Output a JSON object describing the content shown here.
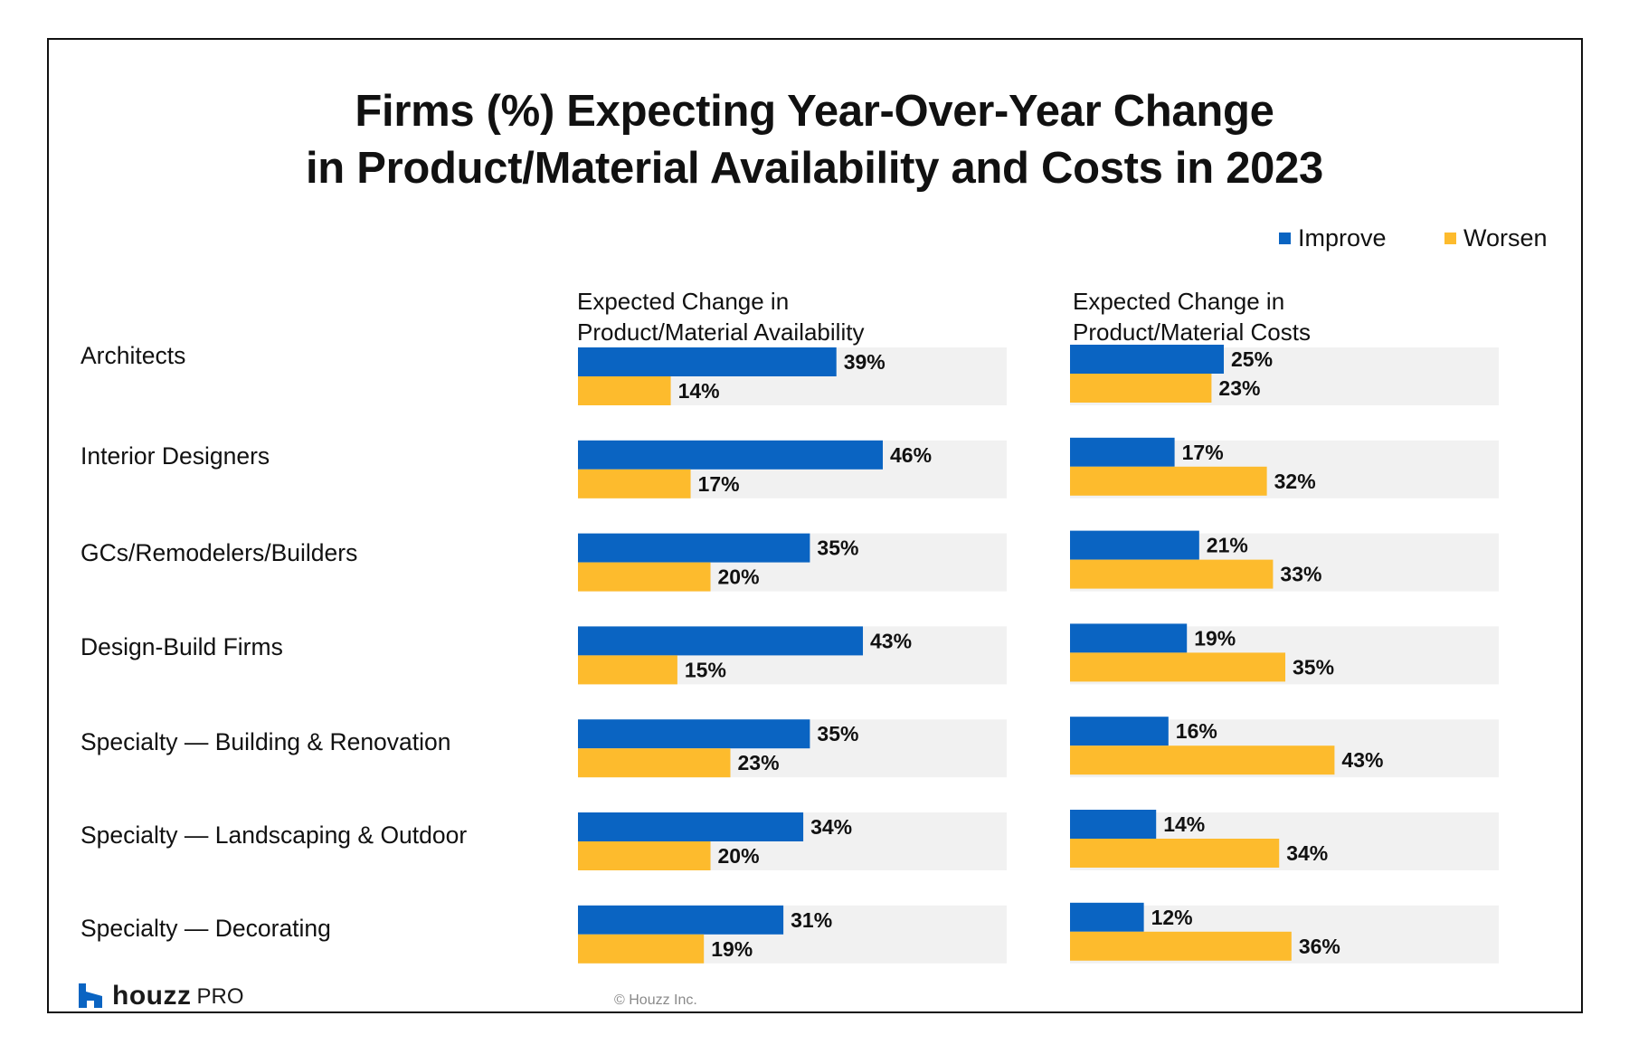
{
  "colors": {
    "improve": "#0A64C2",
    "worsen": "#FDBB2D",
    "track": "#F1F1F1",
    "text": "#111111"
  },
  "chart_data": {
    "type": "bar",
    "orientation": "horizontal",
    "title": "Firms (%) Expecting Year-Over-Year Change in Product/Material Availability and Costs in 2023",
    "title_lines": [
      "Firms (%) Expecting Year-Over-Year Change",
      "in Product/Material Availability and Costs in 2023"
    ],
    "legend": {
      "position": "top-right",
      "entries": [
        {
          "name": "Improve",
          "color": "#0A64C2"
        },
        {
          "name": "Worsen",
          "color": "#FDBB2D"
        }
      ]
    },
    "categories": [
      "Architects",
      "Interior Designers",
      "GCs/Remodelers/Builders",
      "Design-Build Firms",
      "Specialty — Building & Renovation",
      "Specialty — Landscaping & Outdoor",
      "Specialty — Decorating"
    ],
    "panels": [
      {
        "header_lines": [
          "Expected Change in",
          "Product/Material Availability"
        ],
        "xlim": [
          0,
          64.7
        ],
        "series": [
          {
            "name": "Improve",
            "values": [
              39,
              46,
              35,
              43,
              35,
              34,
              31
            ]
          },
          {
            "name": "Worsen",
            "values": [
              14,
              17,
              20,
              15,
              23,
              20,
              19
            ]
          }
        ]
      },
      {
        "header_lines": [
          "Expected Change in",
          "Product/Material Costs"
        ],
        "xlim": [
          0,
          69.7
        ],
        "series": [
          {
            "name": "Improve",
            "values": [
              25,
              17,
              21,
              19,
              16,
              14,
              12
            ]
          },
          {
            "name": "Worsen",
            "values": [
              23,
              32,
              33,
              35,
              43,
              34,
              36
            ]
          }
        ]
      }
    ],
    "value_format": "{v}%",
    "grid": false
  },
  "footer": {
    "brand_word": "houzz",
    "brand_suffix": "PRO",
    "copyright": "© Houzz Inc."
  },
  "icons": {
    "logo": "houzz-logo-icon"
  }
}
